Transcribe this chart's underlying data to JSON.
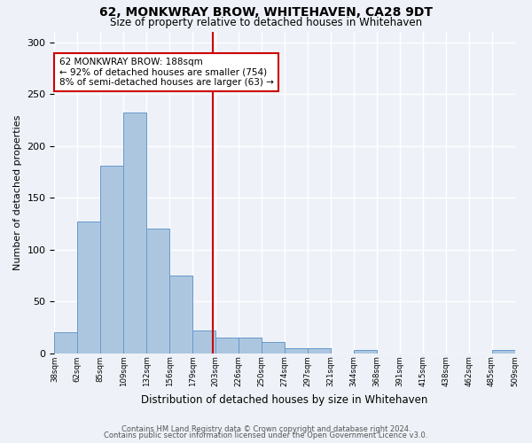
{
  "title": "62, MONKWRAY BROW, WHITEHAVEN, CA28 9DT",
  "subtitle": "Size of property relative to detached houses in Whitehaven",
  "xlabel": "Distribution of detached houses by size in Whitehaven",
  "ylabel": "Number of detached properties",
  "bar_color": "#adc6e0",
  "bar_edgecolor": "#6699cc",
  "vline_x": 5,
  "vline_color": "#cc0000",
  "annotation_title": "62 MONKWRAY BROW: 188sqm",
  "annotation_line1": "← 92% of detached houses are smaller (754)",
  "annotation_line2": "8% of semi-detached houses are larger (63) →",
  "annotation_box_color": "#ffffff",
  "annotation_box_edgecolor": "#cc0000",
  "bin_labels": [
    "38sqm",
    "62sqm",
    "85sqm",
    "109sqm",
    "132sqm",
    "156sqm",
    "179sqm",
    "203sqm",
    "226sqm",
    "250sqm",
    "274sqm",
    "297sqm",
    "321sqm",
    "344sqm",
    "368sqm",
    "391sqm",
    "415sqm",
    "438sqm",
    "462sqm",
    "485sqm",
    "509sqm"
  ],
  "counts": [
    20,
    127,
    181,
    232,
    120,
    75,
    22,
    15,
    15,
    11,
    5,
    5,
    0,
    3,
    0,
    0,
    0,
    0,
    0,
    3
  ],
  "footer1": "Contains HM Land Registry data © Crown copyright and database right 2024.",
  "footer2": "Contains public sector information licensed under the Open Government Licence v3.0.",
  "background_color": "#eef2f8",
  "grid_color": "#ffffff",
  "ylim": [
    0,
    310
  ],
  "yticks": [
    0,
    50,
    100,
    150,
    200,
    250,
    300
  ]
}
